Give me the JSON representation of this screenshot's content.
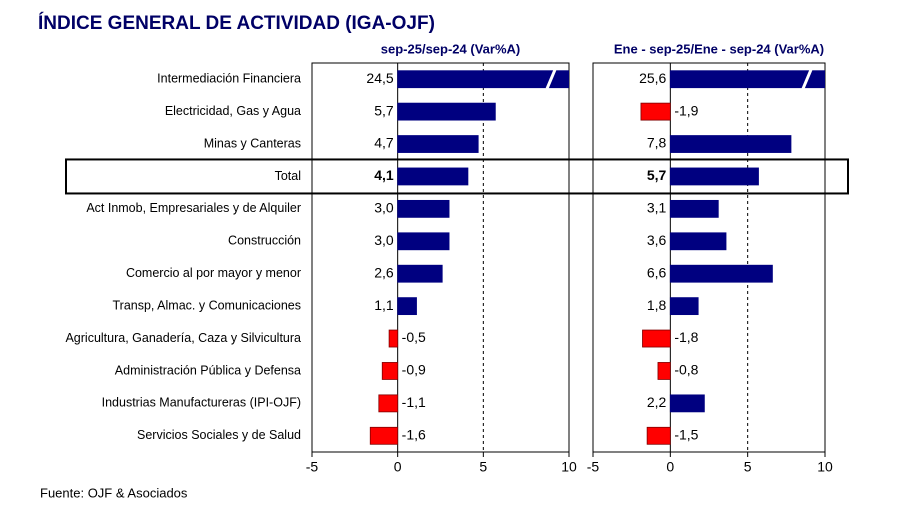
{
  "title": "ÍNDICE GENERAL DE ACTIVIDAD (IGA-OJF)",
  "source": "Fuente: OJF & Asociados",
  "chart_data": [
    {
      "type": "bar",
      "orientation": "horizontal",
      "title": "sep-25/sep-24  (Var%A)",
      "categories": [
        "Intermediación Financiera",
        "Electricidad, Gas y Agua",
        "Minas y Canteras",
        "Total",
        "Act Inmob, Empresariales y de Alquiler",
        "Construcción",
        "Comercio al por mayor y menor",
        "Transp, Almac. y Comunicaciones",
        "Agricultura, Ganadería, Caza y Silvicultura",
        "Administración Pública y Defensa",
        "Industrias Manufactureras (IPI-OJF)",
        "Servicios Sociales y de Salud"
      ],
      "values": [
        24.5,
        5.7,
        4.7,
        4.1,
        3.0,
        3.0,
        2.6,
        1.1,
        -0.5,
        -0.9,
        -1.1,
        -1.6
      ],
      "value_labels": [
        "24,5",
        "5,7",
        "4,7",
        "4,1",
        "3,0",
        "3,0",
        "2,6",
        "1,1",
        "-0,5",
        "-0,9",
        "-1,1",
        "-1,6"
      ],
      "xlim": [
        -5,
        10
      ],
      "xticks": [
        -5,
        0,
        5,
        10
      ],
      "color": "#000080",
      "negative_color": "#ff0000",
      "highlight": 3
    },
    {
      "type": "bar",
      "orientation": "horizontal",
      "title": "Ene - sep-25/Ene - sep-24  (Var%A)",
      "values": [
        25.6,
        -1.9,
        7.8,
        5.7,
        3.1,
        3.6,
        6.6,
        1.8,
        -1.8,
        -0.8,
        2.2,
        -1.5
      ],
      "value_labels": [
        "25,6",
        "-1,9",
        "7,8",
        "5,7",
        "3,1",
        "3,6",
        "6,6",
        "1,8",
        "-1,8",
        "-0,8",
        "2,2",
        "-1,5"
      ],
      "xlim": [
        -5,
        10
      ],
      "xticks": [
        -5,
        0,
        5,
        10
      ],
      "color": "#000080",
      "negative_color": "#ff0000",
      "highlight": 3
    }
  ]
}
